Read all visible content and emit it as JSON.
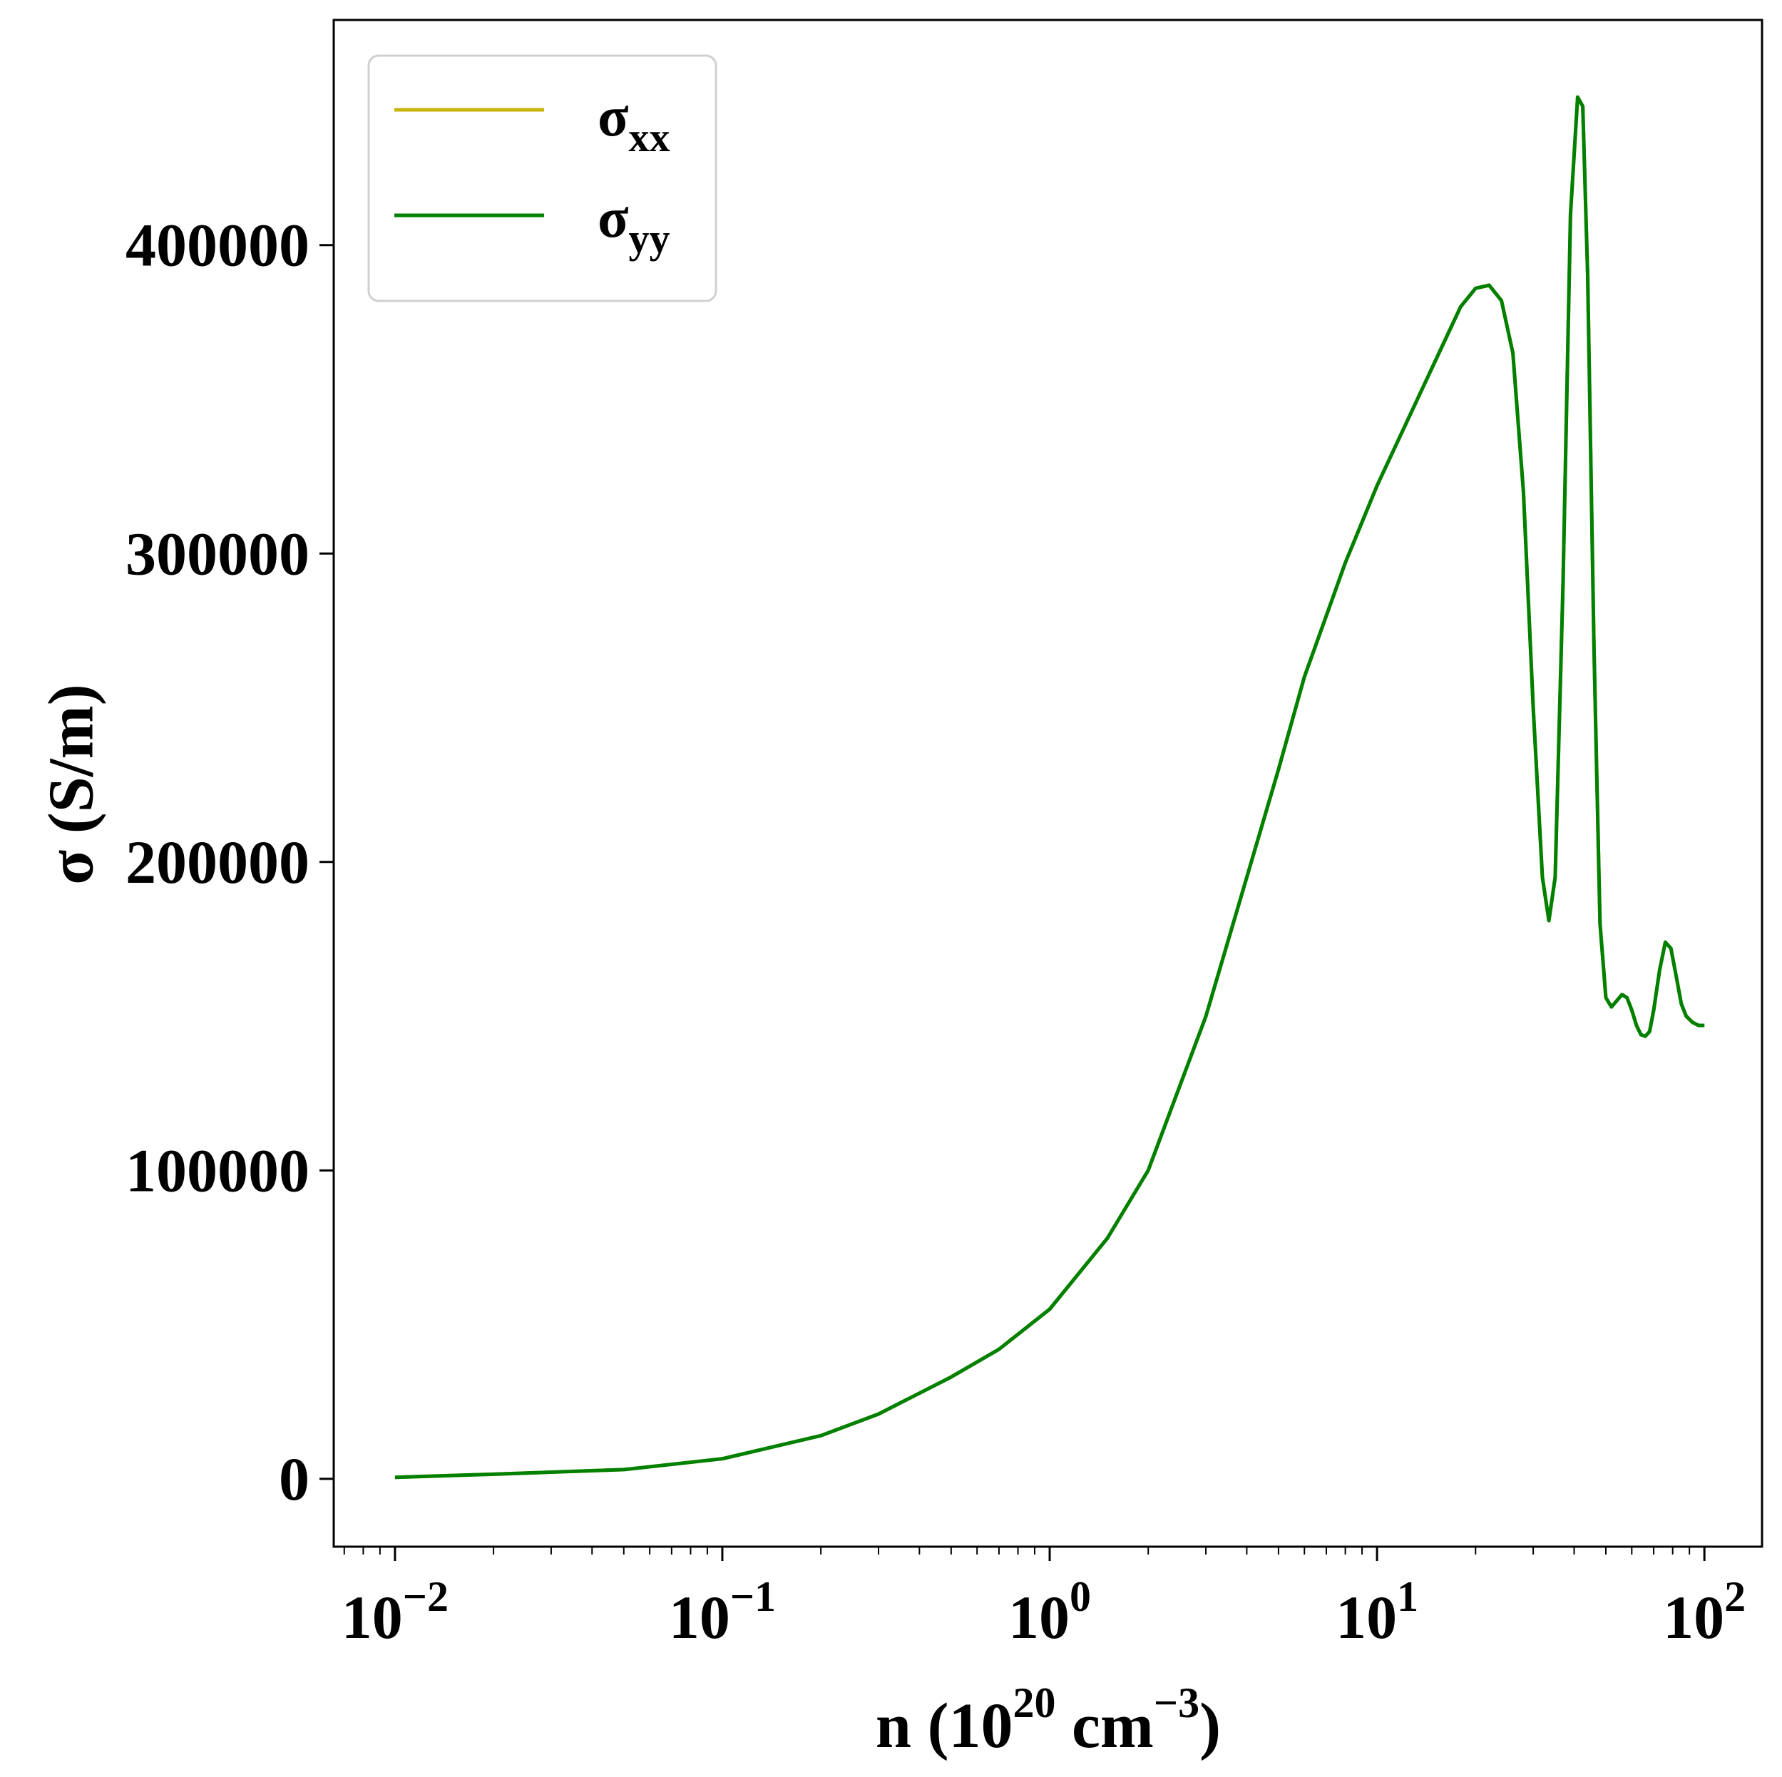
{
  "chart_data": {
    "type": "line",
    "title": "",
    "xlabel": {
      "base": "n (10",
      "sup1": "20",
      "mid": " cm",
      "sup2": "−3",
      "end": ")"
    },
    "ylabel": "σ (S/m)",
    "xscale": "log",
    "xlim": [
      0.0065,
      150
    ],
    "ylim": [
      -22000,
      473000
    ],
    "grid": false,
    "legend_position": "top-left",
    "x_ticks": [
      {
        "value": 0.01,
        "base": "10",
        "exp": "−2"
      },
      {
        "value": 0.1,
        "base": "10",
        "exp": "−1"
      },
      {
        "value": 1,
        "base": "10",
        "exp": "0"
      },
      {
        "value": 10,
        "base": "10",
        "exp": "1"
      },
      {
        "value": 100,
        "base": "10",
        "exp": "2"
      }
    ],
    "y_ticks": [
      {
        "value": 0,
        "label": "0"
      },
      {
        "value": 100000,
        "label": "100000"
      },
      {
        "value": 200000,
        "label": "200000"
      },
      {
        "value": 300000,
        "label": "300000"
      },
      {
        "value": 400000,
        "label": "400000"
      }
    ],
    "series": [
      {
        "name": "σ",
        "subscript": "xx",
        "color": "#c8b40a",
        "note_drawn_under": true,
        "x": [
          0.01,
          0.02,
          0.05,
          0.1,
          0.2,
          0.3,
          0.5,
          0.7,
          1.0,
          1.5,
          2.0,
          3.0,
          4.0,
          5.0,
          6.0,
          8.0,
          10.0,
          12.0,
          15.0,
          18.0,
          20.0,
          22.0,
          24.0,
          26.0,
          28.0,
          30.0,
          32.0,
          33.5,
          35.0,
          37.0,
          39.0,
          41.0,
          42.5,
          44.0,
          46.0,
          48.0,
          50.0,
          52.0,
          54.0,
          56.0,
          58.0,
          60.0,
          62.0,
          64.0,
          66.0,
          68.0,
          70.0,
          73.0,
          76.0,
          79.0,
          82.0,
          85.0,
          88.0,
          92.0,
          96.0,
          100.0
        ],
        "values": [
          500,
          1500,
          3000,
          6500,
          14000,
          21000,
          33000,
          42000,
          55000,
          78000,
          100000,
          150000,
          195000,
          230000,
          260000,
          297000,
          322000,
          340000,
          362000,
          380000,
          386000,
          387000,
          382000,
          365000,
          320000,
          250000,
          195000,
          181000,
          195000,
          290000,
          410000,
          448000,
          445000,
          390000,
          270000,
          180000,
          156000,
          153000,
          155000,
          157000,
          156000,
          152000,
          147000,
          144000,
          143500,
          145000,
          152000,
          165000,
          174000,
          172000,
          163000,
          154000,
          150000,
          148000,
          147000,
          147000
        ]
      },
      {
        "name": "σ",
        "subscript": "yy",
        "color": "#008000",
        "x": [
          0.01,
          0.02,
          0.05,
          0.1,
          0.2,
          0.3,
          0.5,
          0.7,
          1.0,
          1.5,
          2.0,
          3.0,
          4.0,
          5.0,
          6.0,
          8.0,
          10.0,
          12.0,
          15.0,
          18.0,
          20.0,
          22.0,
          24.0,
          26.0,
          28.0,
          30.0,
          32.0,
          33.5,
          35.0,
          37.0,
          39.0,
          41.0,
          42.5,
          44.0,
          46.0,
          48.0,
          50.0,
          52.0,
          54.0,
          56.0,
          58.0,
          60.0,
          62.0,
          64.0,
          66.0,
          68.0,
          70.0,
          73.0,
          76.0,
          79.0,
          82.0,
          85.0,
          88.0,
          92.0,
          96.0,
          100.0
        ],
        "values": [
          500,
          1500,
          3000,
          6500,
          14000,
          21000,
          33000,
          42000,
          55000,
          78000,
          100000,
          150000,
          195000,
          230000,
          260000,
          297000,
          322000,
          340000,
          362000,
          380000,
          386000,
          387000,
          382000,
          365000,
          320000,
          250000,
          195000,
          181000,
          195000,
          290000,
          410000,
          448000,
          445000,
          390000,
          270000,
          180000,
          156000,
          153000,
          155000,
          157000,
          156000,
          152000,
          147000,
          144000,
          143500,
          145000,
          152000,
          165000,
          174000,
          172000,
          163000,
          154000,
          150000,
          148000,
          147000,
          147000
        ]
      }
    ]
  }
}
